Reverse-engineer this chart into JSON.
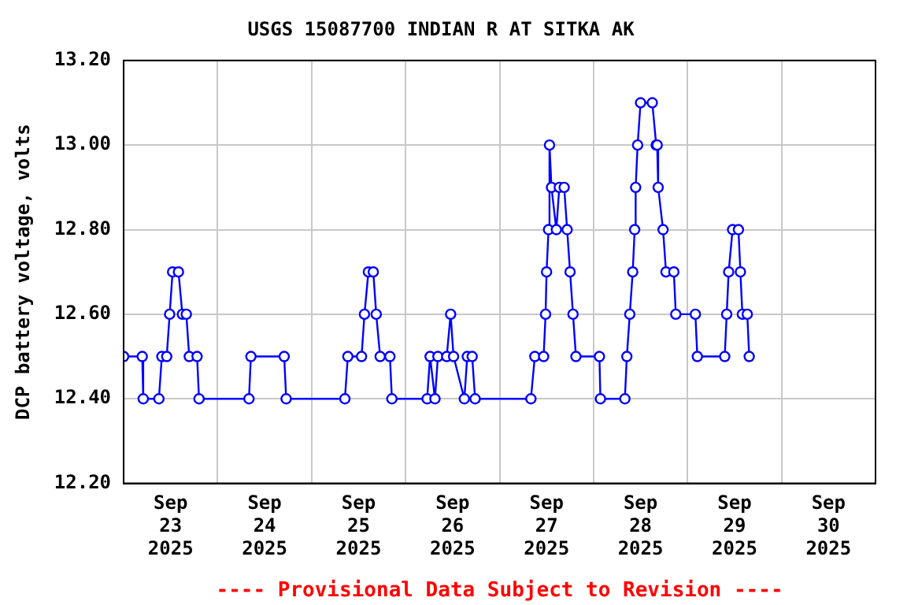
{
  "chart_data": {
    "type": "line",
    "title": "USGS 15087700 INDIAN R AT SITKA AK",
    "ylabel": "DCP battery voltage, volts",
    "annotations": [
      "---- Provisional Data Subject to Revision ----"
    ],
    "x": [
      "2025-09-23T00:00",
      "2025-09-23T04:45",
      "2025-09-23T05:00",
      "2025-09-23T09:00",
      "2025-09-23T09:45",
      "2025-09-23T11:00",
      "2025-09-23T11:45",
      "2025-09-23T12:30",
      "2025-09-23T14:00",
      "2025-09-23T15:00",
      "2025-09-23T16:00",
      "2025-09-23T16:45",
      "2025-09-23T18:45",
      "2025-09-23T19:15",
      "2025-09-24T08:00",
      "2025-09-24T08:30",
      "2025-09-24T17:00",
      "2025-09-24T17:30",
      "2025-09-25T08:30",
      "2025-09-25T09:15",
      "2025-09-25T12:45",
      "2025-09-25T13:30",
      "2025-09-25T14:30",
      "2025-09-25T15:45",
      "2025-09-25T16:30",
      "2025-09-25T17:30",
      "2025-09-25T20:00",
      "2025-09-25T20:30",
      "2025-09-26T05:30",
      "2025-09-26T06:15",
      "2025-09-26T07:30",
      "2025-09-26T08:15",
      "2025-09-26T10:30",
      "2025-09-26T11:30",
      "2025-09-26T12:15",
      "2025-09-26T15:00",
      "2025-09-26T15:45",
      "2025-09-26T17:00",
      "2025-09-26T17:45",
      "2025-09-27T08:00",
      "2025-09-27T09:00",
      "2025-09-27T11:15",
      "2025-09-27T11:45",
      "2025-09-27T12:00",
      "2025-09-27T12:30",
      "2025-09-27T12:45",
      "2025-09-27T13:15",
      "2025-09-27T14:30",
      "2025-09-27T15:15",
      "2025-09-27T16:30",
      "2025-09-27T17:15",
      "2025-09-27T18:00",
      "2025-09-27T18:45",
      "2025-09-27T19:30",
      "2025-09-28T01:30",
      "2025-09-28T01:45",
      "2025-09-28T08:00",
      "2025-09-28T08:30",
      "2025-09-28T09:15",
      "2025-09-28T10:00",
      "2025-09-28T10:30",
      "2025-09-28T10:45",
      "2025-09-28T11:15",
      "2025-09-28T12:00",
      "2025-09-28T15:00",
      "2025-09-28T16:00",
      "2025-09-28T16:15",
      "2025-09-28T16:30",
      "2025-09-28T17:45",
      "2025-09-28T18:30",
      "2025-09-28T20:30",
      "2025-09-28T21:00",
      "2025-09-29T02:00",
      "2025-09-29T02:30",
      "2025-09-29T09:30",
      "2025-09-29T10:00",
      "2025-09-29T10:30",
      "2025-09-29T11:30",
      "2025-09-29T13:00",
      "2025-09-29T13:30",
      "2025-09-29T14:00",
      "2025-09-29T15:15",
      "2025-09-29T15:45"
    ],
    "series": [
      {
        "color": "#0000ff",
        "values": [
          12.5,
          12.5,
          12.4,
          12.4,
          12.5,
          12.5,
          12.6,
          12.7,
          12.7,
          12.6,
          12.6,
          12.5,
          12.5,
          12.4,
          12.4,
          12.5,
          12.5,
          12.4,
          12.4,
          12.5,
          12.5,
          12.6,
          12.7,
          12.7,
          12.6,
          12.5,
          12.5,
          12.4,
          12.4,
          12.5,
          12.4,
          12.5,
          12.5,
          12.6,
          12.5,
          12.4,
          12.5,
          12.5,
          12.4,
          12.4,
          12.5,
          12.5,
          12.6,
          12.7,
          12.8,
          13.0,
          12.9,
          12.8,
          12.9,
          12.9,
          12.8,
          12.7,
          12.6,
          12.5,
          12.5,
          12.4,
          12.4,
          12.5,
          12.6,
          12.7,
          12.8,
          12.9,
          13.0,
          13.1,
          13.1,
          13.0,
          13.0,
          12.9,
          12.8,
          12.7,
          12.7,
          12.6,
          12.6,
          12.5,
          12.5,
          12.6,
          12.7,
          12.8,
          12.8,
          12.7,
          12.6,
          12.6,
          12.5
        ]
      }
    ],
    "xlim": [
      "2025-09-23T00:00",
      "2025-10-01T00:00"
    ],
    "xticks": [
      {
        "value": "2025-09-23T00:00",
        "label": null
      },
      {
        "value": "2025-09-23T12:00",
        "label": "Sep\n23\n2025"
      },
      {
        "value": "2025-09-24T00:00",
        "label": null
      },
      {
        "value": "2025-09-24T12:00",
        "label": "Sep\n24\n2025"
      },
      {
        "value": "2025-09-25T00:00",
        "label": null
      },
      {
        "value": "2025-09-25T12:00",
        "label": "Sep\n25\n2025"
      },
      {
        "value": "2025-09-26T00:00",
        "label": null
      },
      {
        "value": "2025-09-26T12:00",
        "label": "Sep\n26\n2025"
      },
      {
        "value": "2025-09-27T00:00",
        "label": null
      },
      {
        "value": "2025-09-27T12:00",
        "label": "Sep\n27\n2025"
      },
      {
        "value": "2025-09-28T00:00",
        "label": null
      },
      {
        "value": "2025-09-28T12:00",
        "label": "Sep\n28\n2025"
      },
      {
        "value": "2025-09-29T00:00",
        "label": null
      },
      {
        "value": "2025-09-29T12:00",
        "label": "Sep\n29\n2025"
      },
      {
        "value": "2025-09-30T00:00",
        "label": null
      },
      {
        "value": "2025-09-30T12:00",
        "label": "Sep\n30\n2025"
      },
      {
        "value": "2025-10-01T00:00",
        "label": null
      }
    ],
    "ylim": [
      12.2,
      13.2
    ],
    "yticks": [
      {
        "value": 12.2,
        "label": "12.20"
      },
      {
        "value": 12.4,
        "label": "12.40"
      },
      {
        "value": 12.6,
        "label": "12.60"
      },
      {
        "value": 12.8,
        "label": "12.80"
      },
      {
        "value": 13.0,
        "label": "13.00"
      },
      {
        "value": 13.2,
        "label": "13.20"
      }
    ],
    "grid": true,
    "marker": "circle",
    "line_style": "solid"
  }
}
